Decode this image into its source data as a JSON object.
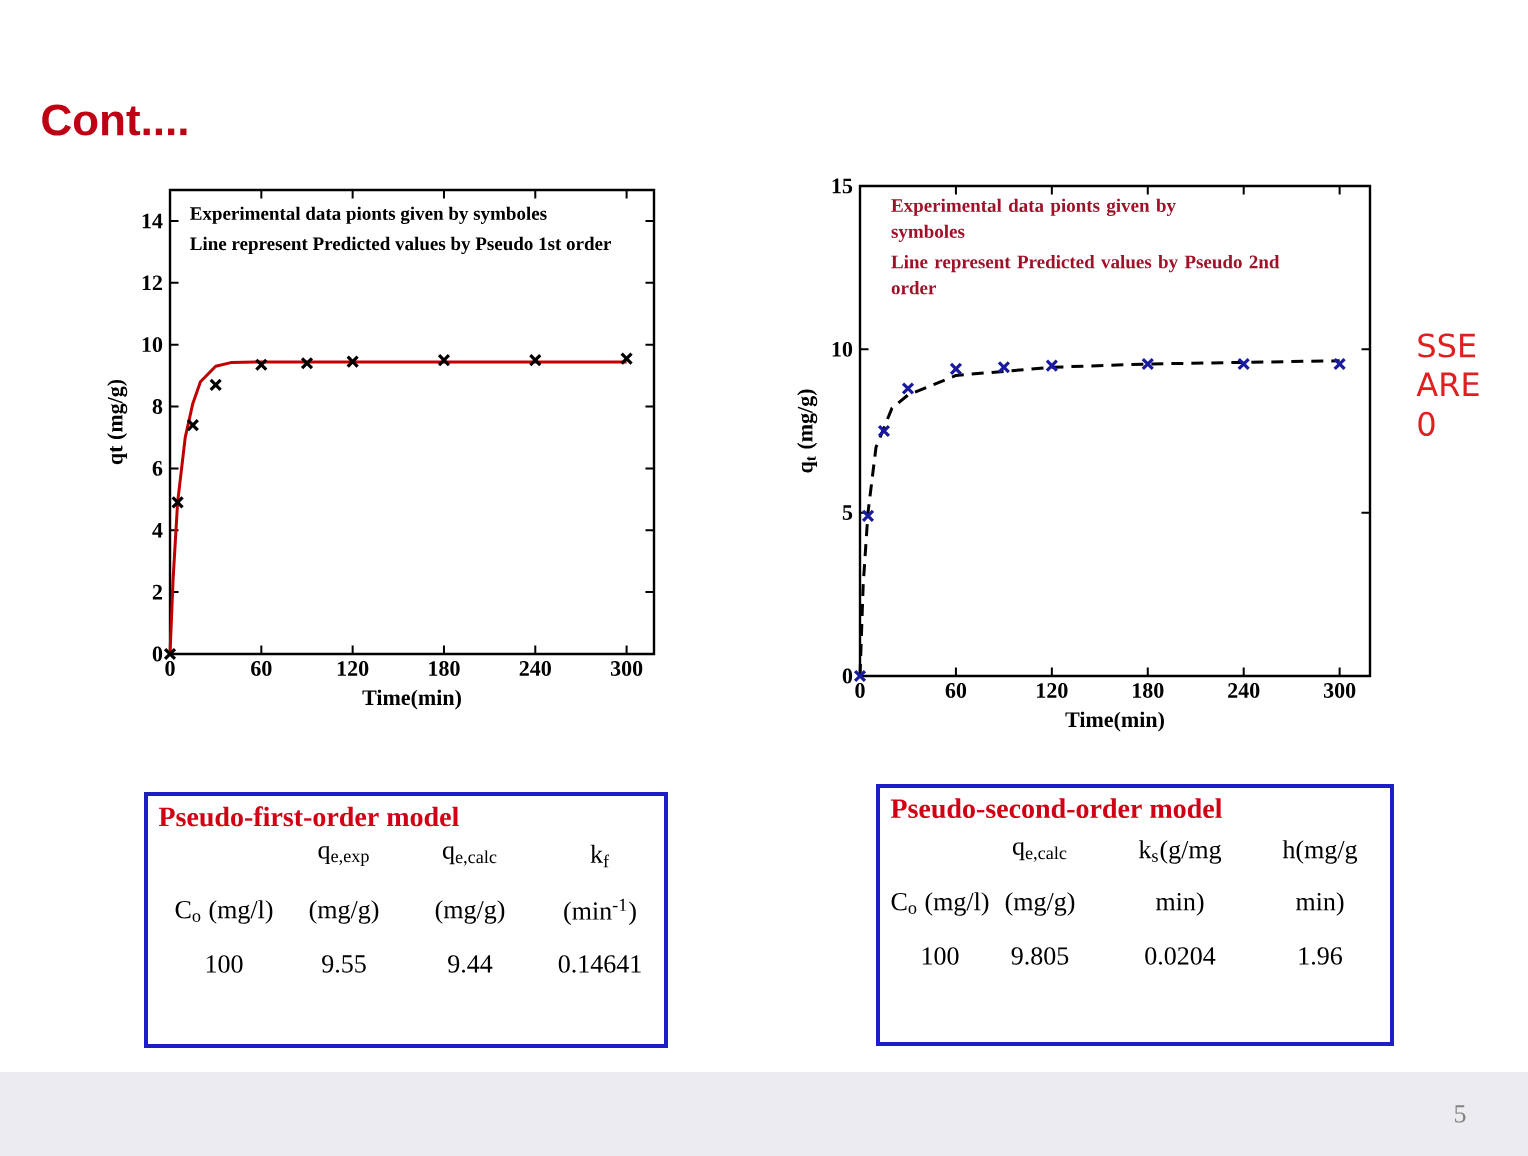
{
  "chart_data": [
    {
      "type": "scatter",
      "title": "Cont....",
      "xlabel": "Time(min)",
      "ylabel": "qt (mg/g)",
      "xlim": [
        0,
        318
      ],
      "ylim": [
        0,
        15
      ],
      "xticks": [
        0,
        60,
        120,
        180,
        240,
        300
      ],
      "yticks": [
        0,
        2,
        4,
        6,
        8,
        10,
        12,
        14
      ],
      "annotations": [
        "Experimental data pionts given by symboles",
        "Line represent Predicted values by Pseudo 1st order"
      ],
      "series": [
        {
          "type": "scatter",
          "marker": "cross",
          "color": "#000000",
          "x": [
            0,
            5,
            15,
            30,
            60,
            90,
            120,
            180,
            240,
            300
          ],
          "values": [
            0,
            4.9,
            7.4,
            8.7,
            9.35,
            9.4,
            9.45,
            9.5,
            9.5,
            9.55
          ]
        },
        {
          "type": "line",
          "marker": "none",
          "line_style": "solid",
          "color": "#c00000",
          "x": [
            0,
            2,
            5,
            10,
            15,
            20,
            30,
            40,
            60,
            300
          ],
          "values": [
            0,
            2.4,
            4.9,
            7.0,
            8.1,
            8.8,
            9.3,
            9.42,
            9.44,
            9.44
          ]
        }
      ]
    },
    {
      "type": "scatter",
      "xlabel": "Time(min)",
      "ylabel": "q$_{t}$ (mg/g)",
      "xlim": [
        0,
        319
      ],
      "ylim": [
        0,
        15
      ],
      "xticks": [
        0,
        60,
        120,
        180,
        240,
        300
      ],
      "yticks": [
        0,
        5,
        10,
        15
      ],
      "annotations": [
        "Experimental data pionts given by symboles",
        "Line represent Predicted values by Pseudo 2nd order",
        "SSE",
        "ARE",
        "0"
      ],
      "series": [
        {
          "type": "scatter",
          "marker": "cross",
          "color": "#1a1aa0",
          "x": [
            0,
            5,
            15,
            30,
            60,
            90,
            120,
            180,
            240,
            300
          ],
          "values": [
            0,
            4.9,
            7.5,
            8.8,
            9.4,
            9.45,
            9.5,
            9.55,
            9.55,
            9.55
          ]
        },
        {
          "type": "line",
          "marker": "none",
          "line_style": "dashed",
          "color": "#000000",
          "x": [
            0,
            2,
            5,
            10,
            20,
            30,
            60,
            120,
            180,
            300
          ],
          "values": [
            0,
            2.8,
            5.0,
            7.0,
            8.2,
            8.6,
            9.2,
            9.45,
            9.55,
            9.65
          ]
        }
      ]
    },
    {
      "type": "other",
      "title": "Pseudo-first-order model",
      "annotations": [
        "q$_{e,exp}$",
        "q$_{e,calc}$",
        "k$_{f}$",
        "C$_{o}$ (mg/l)",
        "(mg/g)",
        "(mg/g)",
        "(min$^{-1}$)",
        "100",
        "9.55",
        "9.44",
        "0.14641"
      ]
    },
    {
      "type": "other",
      "title": "Pseudo-second-order model",
      "annotations": [
        "q$_{e,calc}$",
        "k$_{s}$(g/mg",
        "h(mg/g",
        "C$_{o}$ (mg/l)",
        "(mg/g)",
        "min)",
        "min)",
        "100",
        "9.805",
        "0.0204",
        "1.96",
        "5"
      ]
    }
  ]
}
